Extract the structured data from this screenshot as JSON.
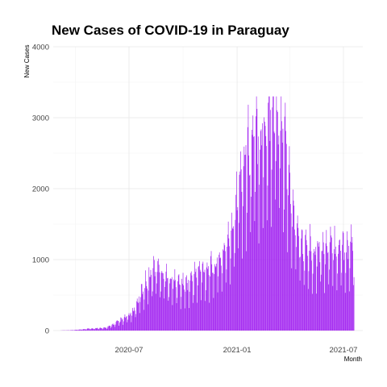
{
  "chart_data": {
    "type": "bar",
    "title": "New Cases of COVID-19 in Paraguay",
    "xlabel": "Month",
    "ylabel": "New Cases",
    "x_start": "2020-03-07",
    "x_end": "2021-07-19",
    "xlim": [
      "2020-02-23",
      "2021-08-03"
    ],
    "ylim": [
      0,
      4000
    ],
    "y_ticks": [
      0,
      1000,
      2000,
      3000,
      4000
    ],
    "x_ticks": [
      {
        "date": "2020-07-01",
        "label": "2020-07"
      },
      {
        "date": "2021-01-01",
        "label": "2021-01"
      },
      {
        "date": "2021-07-01",
        "label": "2021-07"
      }
    ],
    "x_minor_ticks": [
      "2020-04-01",
      "2020-10-01",
      "2021-04-01"
    ],
    "bar_color": "#a020f0",
    "grid": true,
    "values_weekly": [
      2,
      3,
      4,
      6,
      10,
      15,
      20,
      30,
      25,
      35,
      30,
      40,
      60,
      90,
      120,
      150,
      180,
      220,
      300,
      420,
      560,
      680,
      780,
      840,
      820,
      760,
      700,
      680,
      650,
      620,
      620,
      640,
      700,
      760,
      800,
      820,
      820,
      860,
      900,
      980,
      1080,
      1250,
      1500,
      1850,
      2100,
      2300,
      2400,
      2500,
      2600,
      2650,
      2750,
      2900,
      3050,
      2850,
      2550,
      2200,
      1800,
      1450,
      1200,
      1100
    ]
  }
}
